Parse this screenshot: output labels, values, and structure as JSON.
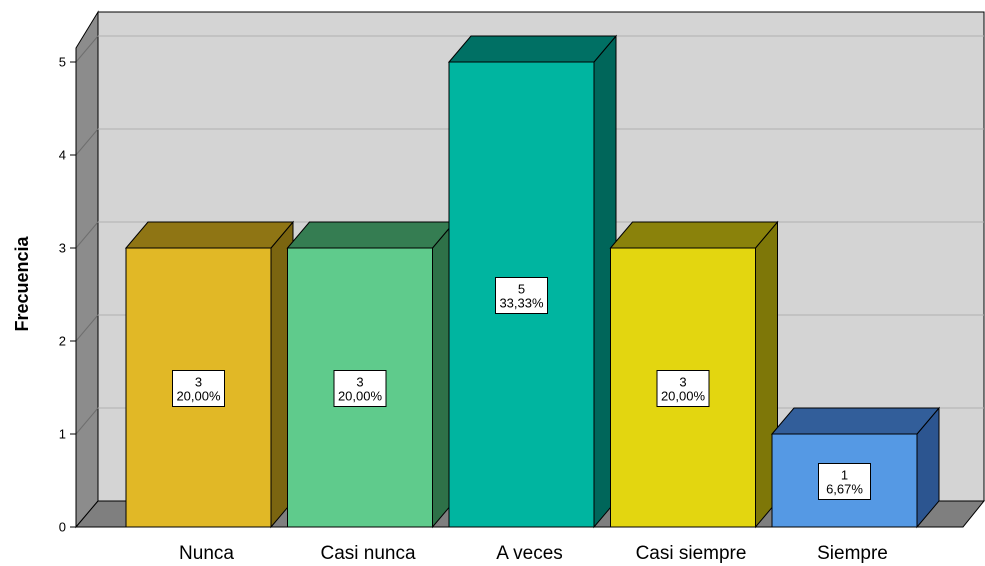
{
  "chart_data": {
    "type": "bar",
    "title": "",
    "xlabel": "",
    "ylabel": "Frecuencia",
    "ylim": [
      0,
      5
    ],
    "yticks": [
      "0",
      "1",
      "2",
      "3",
      "4",
      "5"
    ],
    "grid": true,
    "legend": "none",
    "categories": [
      "Nunca",
      "Casi nunca",
      "A veces",
      "Casi siempre",
      "Siempre"
    ],
    "values": [
      3,
      3,
      5,
      3,
      1
    ],
    "data_labels": [
      {
        "count": "3",
        "percent": "20,00%"
      },
      {
        "count": "3",
        "percent": "20,00%"
      },
      {
        "count": "5",
        "percent": "33,33%"
      },
      {
        "count": "3",
        "percent": "20,00%"
      },
      {
        "count": "1",
        "percent": "6,67%"
      }
    ],
    "colors": [
      {
        "front": "#E1B826",
        "side": "#7B6510",
        "top": "#8F7514"
      },
      {
        "front": "#5FCB8C",
        "side": "#2E7148",
        "top": "#357D52"
      },
      {
        "front": "#00B5A0",
        "side": "#00665A",
        "top": "#007064"
      },
      {
        "front": "#E3D610",
        "side": "#7E7708",
        "top": "#8A820B"
      },
      {
        "front": "#5599E4",
        "side": "#2C5590",
        "top": "#325E9A"
      }
    ],
    "wall_color": "#D4D4D4",
    "floor_color": "#7F7F7F"
  }
}
